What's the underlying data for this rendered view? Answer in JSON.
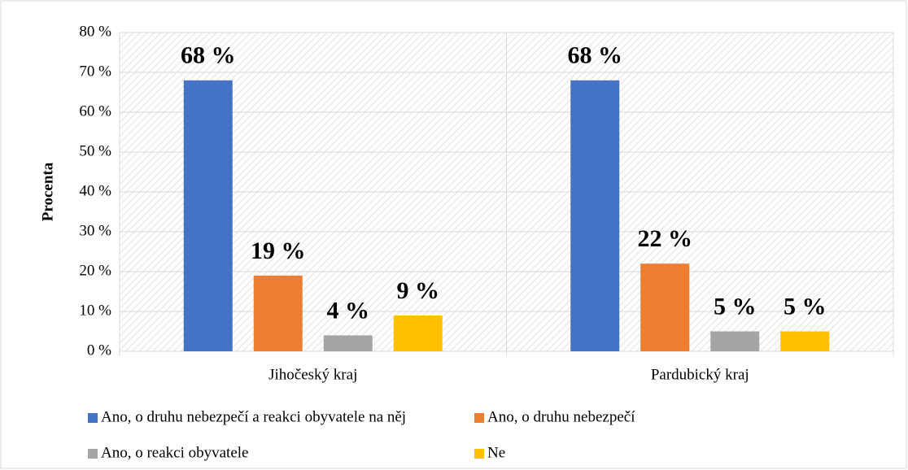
{
  "chart_data": {
    "type": "bar",
    "y_label": "Procenta",
    "categories": [
      "Jihočeský kraj",
      "Pardubický kraj"
    ],
    "series": [
      {
        "name": "Ano, o druhu nebezpečí a reakci obyvatele na něj",
        "color": "#4472c4",
        "values": [
          68,
          68
        ],
        "value_labels": [
          "68 %",
          "68 %"
        ]
      },
      {
        "name": "Ano, o druhu nebezpečí",
        "color": "#ed7d31",
        "values": [
          19,
          22
        ],
        "value_labels": [
          "19 %",
          "22 %"
        ]
      },
      {
        "name": "Ano, o reakci obyvatele",
        "color": "#a5a5a5",
        "values": [
          4,
          5
        ],
        "value_labels": [
          "4 %",
          "5 %"
        ]
      },
      {
        "name": "Ne",
        "color": "#ffc000",
        "values": [
          9,
          5
        ],
        "value_labels": [
          "9 %",
          "5 %"
        ]
      }
    ],
    "ylim": [
      0,
      80
    ],
    "yticks": [
      {
        "value": 0,
        "label": "0 %"
      },
      {
        "value": 10,
        "label": "10 %"
      },
      {
        "value": 20,
        "label": "20 %"
      },
      {
        "value": 30,
        "label": "30 %"
      },
      {
        "value": 40,
        "label": "40 %"
      },
      {
        "value": 50,
        "label": "50 %"
      },
      {
        "value": 60,
        "label": "60 %"
      },
      {
        "value": 70,
        "label": "70 %"
      },
      {
        "value": 80,
        "label": "80 %"
      }
    ],
    "grid": true
  }
}
